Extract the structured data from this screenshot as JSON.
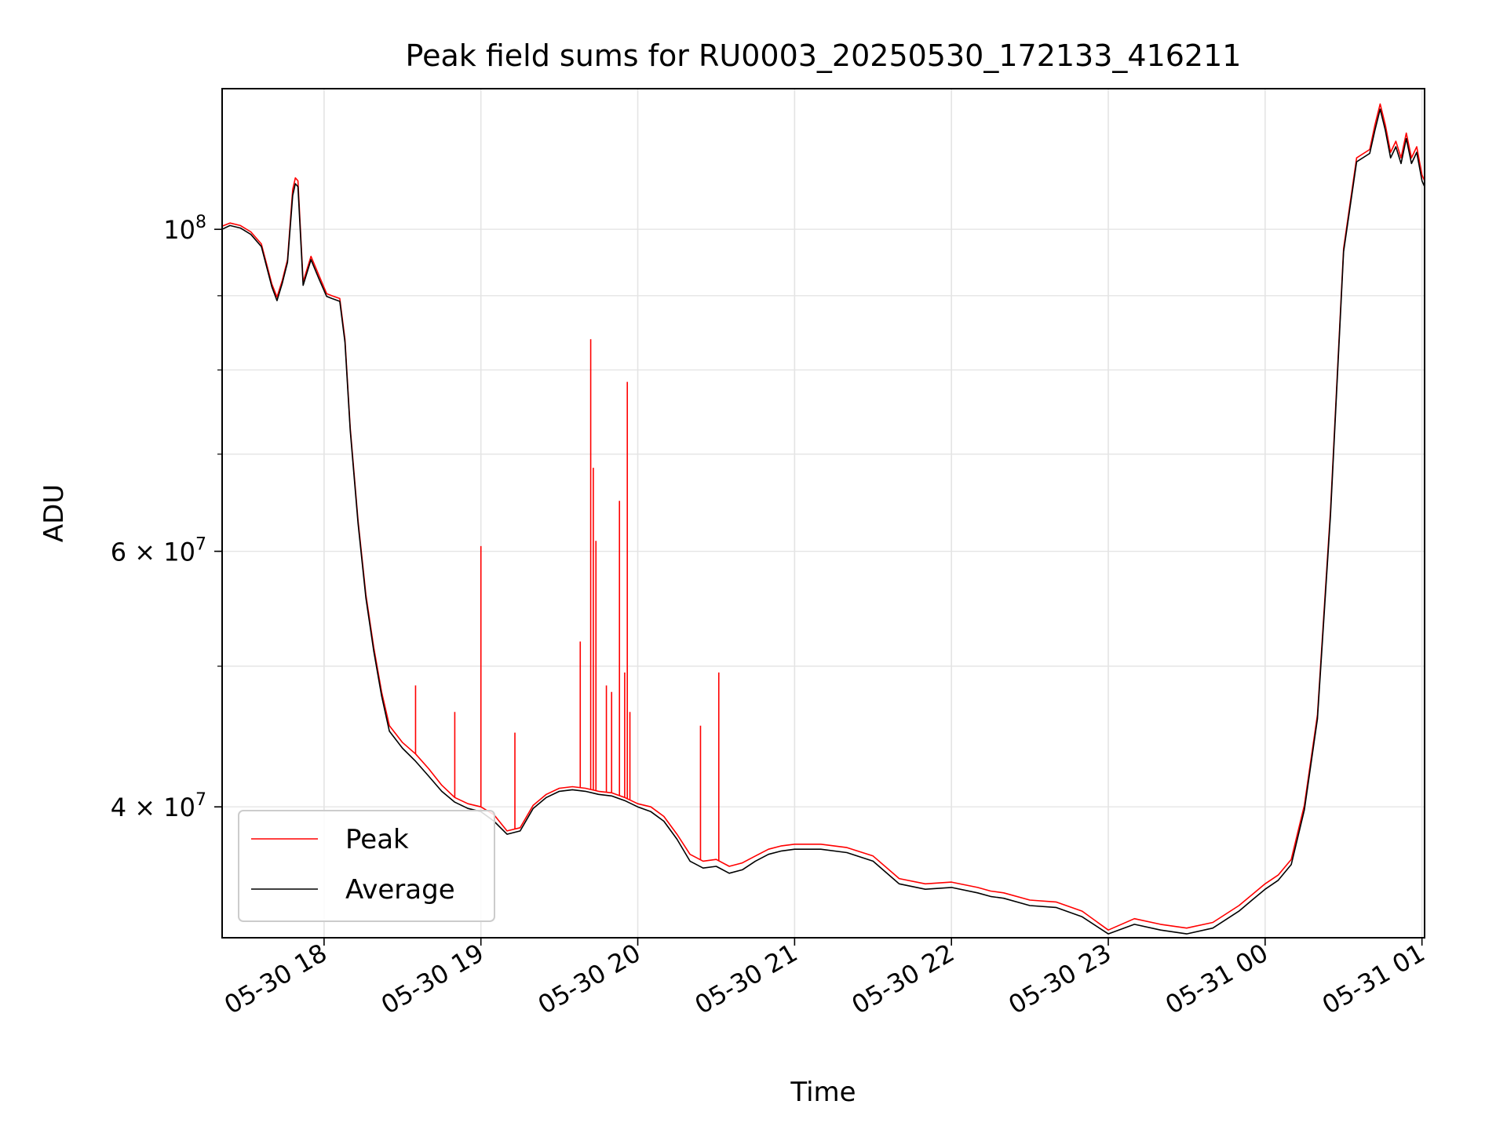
{
  "chart_data": {
    "type": "line",
    "title": "Peak field sums for RU0003_20250530_172133_416211",
    "xlabel": "Time",
    "ylabel": "ADU",
    "yscale": "log",
    "xlim": [
      "2025-05-30 17:21",
      "2025-05-31 01:01"
    ],
    "ylim": [
      32500000,
      125000000
    ],
    "x_ticks": [
      "05-30 18",
      "05-30 19",
      "05-30 20",
      "05-30 21",
      "05-30 22",
      "05-30 23",
      "05-31 00",
      "05-31 01"
    ],
    "y_ticks": [
      {
        "mantissa": "",
        "exponent": "8",
        "value": 100000000
      },
      {
        "mantissa": "6",
        "exponent": "7",
        "value": 60000000
      },
      {
        "mantissa": "4",
        "exponent": "7",
        "value": 40000000
      }
    ],
    "grid": true,
    "legend_position": "lower-left",
    "colors": {
      "peak": "#ff0000",
      "average": "#000000"
    },
    "series": [
      {
        "name": "Peak",
        "x": [
          "2025-05-30 17:21",
          "2025-05-30 17:24",
          "2025-05-30 17:28",
          "2025-05-30 17:32",
          "2025-05-30 17:36",
          "2025-05-30 17:40",
          "2025-05-30 17:42",
          "2025-05-30 17:44",
          "2025-05-30 17:46",
          "2025-05-30 17:48",
          "2025-05-30 17:49",
          "2025-05-30 17:50",
          "2025-05-30 17:52",
          "2025-05-30 17:55",
          "2025-05-30 17:58",
          "2025-05-30 18:01",
          "2025-05-30 18:03",
          "2025-05-30 18:06",
          "2025-05-30 18:08",
          "2025-05-30 18:10",
          "2025-05-30 18:13",
          "2025-05-30 18:16",
          "2025-05-30 18:19",
          "2025-05-30 18:22",
          "2025-05-30 18:25",
          "2025-05-30 18:30",
          "2025-05-30 18:35",
          "2025-05-30 18:40",
          "2025-05-30 18:45",
          "2025-05-30 18:50",
          "2025-05-30 18:55",
          "2025-05-30 19:00",
          "2025-05-30 19:05",
          "2025-05-30 19:10",
          "2025-05-30 19:15",
          "2025-05-30 19:20",
          "2025-05-30 19:25",
          "2025-05-30 19:30",
          "2025-05-30 19:35",
          "2025-05-30 19:40",
          "2025-05-30 19:45",
          "2025-05-30 19:50",
          "2025-05-30 19:55",
          "2025-05-30 20:00",
          "2025-05-30 20:05",
          "2025-05-30 20:10",
          "2025-05-30 20:15",
          "2025-05-30 20:20",
          "2025-05-30 20:25",
          "2025-05-30 20:30",
          "2025-05-30 20:35",
          "2025-05-30 20:40",
          "2025-05-30 20:45",
          "2025-05-30 20:50",
          "2025-05-30 20:55",
          "2025-05-30 21:00",
          "2025-05-30 21:10",
          "2025-05-30 21:20",
          "2025-05-30 21:30",
          "2025-05-30 21:40",
          "2025-05-30 21:50",
          "2025-05-30 22:00",
          "2025-05-30 22:10",
          "2025-05-30 22:15",
          "2025-05-30 22:20",
          "2025-05-30 22:30",
          "2025-05-30 22:40",
          "2025-05-30 22:50",
          "2025-05-30 23:00",
          "2025-05-30 23:10",
          "2025-05-30 23:20",
          "2025-05-30 23:30",
          "2025-05-30 23:40",
          "2025-05-30 23:50",
          "2025-05-30 23:55",
          "2025-05-31 00:00",
          "2025-05-31 00:05",
          "2025-05-31 00:10",
          "2025-05-31 00:15",
          "2025-05-31 00:20",
          "2025-05-31 00:25",
          "2025-05-31 00:30",
          "2025-05-31 00:35",
          "2025-05-31 00:40",
          "2025-05-31 00:42",
          "2025-05-31 00:44",
          "2025-05-31 00:46",
          "2025-05-31 00:48",
          "2025-05-31 00:50",
          "2025-05-31 00:52",
          "2025-05-31 00:54",
          "2025-05-31 00:56",
          "2025-05-31 00:58",
          "2025-05-31 01:00",
          "2025-05-31 01:01"
        ],
        "y": [
          100500000,
          101000000,
          100600000,
          99600000,
          97700000,
          91700000,
          89800000,
          92200000,
          95300000,
          106500000,
          108500000,
          108000000,
          92000000,
          95800000,
          93000000,
          90300000,
          90000000,
          89600000,
          84000000,
          73000000,
          63000000,
          56000000,
          51500000,
          48000000,
          45500000,
          44300000,
          43500000,
          42500000,
          41400000,
          40600000,
          40200000,
          40000000,
          39500000,
          38500000,
          38700000,
          40100000,
          40800000,
          41200000,
          41300000,
          41200000,
          41000000,
          40900000,
          40600000,
          40200000,
          40000000,
          39400000,
          38300000,
          37100000,
          36700000,
          36800000,
          36400000,
          36600000,
          37000000,
          37400000,
          37600000,
          37700000,
          37700000,
          37500000,
          37000000,
          35700000,
          35400000,
          35500000,
          35200000,
          35000000,
          34900000,
          34500000,
          34400000,
          33900000,
          32900000,
          33500000,
          33200000,
          33000000,
          33300000,
          34200000,
          34800000,
          35400000,
          35900000,
          36800000,
          40100000,
          46300000,
          64000000,
          97000000,
          112000000,
          113500000,
          118000000,
          122000000,
          118000000,
          113000000,
          115000000,
          112000000,
          116500000,
          112000000,
          114000000,
          109000000,
          108000000
        ]
      },
      {
        "name": "Average",
        "x": [
          "2025-05-30 17:21",
          "2025-05-30 17:24",
          "2025-05-30 17:28",
          "2025-05-30 17:32",
          "2025-05-30 17:36",
          "2025-05-30 17:40",
          "2025-05-30 17:42",
          "2025-05-30 17:44",
          "2025-05-30 17:46",
          "2025-05-30 17:48",
          "2025-05-30 17:49",
          "2025-05-30 17:50",
          "2025-05-30 17:52",
          "2025-05-30 17:55",
          "2025-05-30 17:58",
          "2025-05-30 18:01",
          "2025-05-30 18:03",
          "2025-05-30 18:06",
          "2025-05-30 18:08",
          "2025-05-30 18:10",
          "2025-05-30 18:13",
          "2025-05-30 18:16",
          "2025-05-30 18:19",
          "2025-05-30 18:22",
          "2025-05-30 18:25",
          "2025-05-30 18:30",
          "2025-05-30 18:35",
          "2025-05-30 18:40",
          "2025-05-30 18:45",
          "2025-05-30 18:50",
          "2025-05-30 18:55",
          "2025-05-30 19:00",
          "2025-05-30 19:05",
          "2025-05-30 19:10",
          "2025-05-30 19:15",
          "2025-05-30 19:20",
          "2025-05-30 19:25",
          "2025-05-30 19:30",
          "2025-05-30 19:35",
          "2025-05-30 19:40",
          "2025-05-30 19:45",
          "2025-05-30 19:50",
          "2025-05-30 19:55",
          "2025-05-30 20:00",
          "2025-05-30 20:05",
          "2025-05-30 20:10",
          "2025-05-30 20:15",
          "2025-05-30 20:20",
          "2025-05-30 20:25",
          "2025-05-30 20:30",
          "2025-05-30 20:35",
          "2025-05-30 20:40",
          "2025-05-30 20:45",
          "2025-05-30 20:50",
          "2025-05-30 20:55",
          "2025-05-30 21:00",
          "2025-05-30 21:10",
          "2025-05-30 21:20",
          "2025-05-30 21:30",
          "2025-05-30 21:40",
          "2025-05-30 21:50",
          "2025-05-30 22:00",
          "2025-05-30 22:10",
          "2025-05-30 22:15",
          "2025-05-30 22:20",
          "2025-05-30 22:30",
          "2025-05-30 22:40",
          "2025-05-30 22:50",
          "2025-05-30 23:00",
          "2025-05-30 23:10",
          "2025-05-30 23:20",
          "2025-05-30 23:30",
          "2025-05-30 23:40",
          "2025-05-30 23:50",
          "2025-05-30 23:55",
          "2025-05-31 00:00",
          "2025-05-31 00:05",
          "2025-05-31 00:10",
          "2025-05-31 00:15",
          "2025-05-31 00:20",
          "2025-05-31 00:25",
          "2025-05-31 00:30",
          "2025-05-31 00:35",
          "2025-05-31 00:40",
          "2025-05-31 00:42",
          "2025-05-31 00:44",
          "2025-05-31 00:46",
          "2025-05-31 00:48",
          "2025-05-31 00:50",
          "2025-05-31 00:52",
          "2025-05-31 00:54",
          "2025-05-31 00:56",
          "2025-05-31 00:58",
          "2025-05-31 01:00",
          "2025-05-31 01:01"
        ],
        "y": [
          100000000,
          100600000,
          100200000,
          99200000,
          97300000,
          91300000,
          89300000,
          91800000,
          94900000,
          105500000,
          107500000,
          107000000,
          91500000,
          95300000,
          92500000,
          89900000,
          89600000,
          89200000,
          83600000,
          72700000,
          62700000,
          55700000,
          51200000,
          47700000,
          45100000,
          43900000,
          43000000,
          42000000,
          41000000,
          40300000,
          39900000,
          39700000,
          39100000,
          38300000,
          38500000,
          39900000,
          40600000,
          41000000,
          41100000,
          41000000,
          40800000,
          40700000,
          40400000,
          40000000,
          39700000,
          39100000,
          38000000,
          36700000,
          36300000,
          36400000,
          36000000,
          36200000,
          36700000,
          37100000,
          37300000,
          37400000,
          37400000,
          37200000,
          36700000,
          35400000,
          35100000,
          35200000,
          34900000,
          34700000,
          34600000,
          34200000,
          34100000,
          33600000,
          32700000,
          33200000,
          32900000,
          32700000,
          33000000,
          33900000,
          34500000,
          35100000,
          35600000,
          36500000,
          39800000,
          46000000,
          63500000,
          96500000,
          111300000,
          112800000,
          117000000,
          121000000,
          117000000,
          112000000,
          114000000,
          111000000,
          115500000,
          111000000,
          113000000,
          108000000,
          107000000
        ]
      }
    ],
    "spikes_peak": [
      {
        "x": "2025-05-30 18:35",
        "y": 48500000
      },
      {
        "x": "2025-05-30 18:50",
        "y": 46500000
      },
      {
        "x": "2025-05-30 19:00",
        "y": 60500000
      },
      {
        "x": "2025-05-30 19:13",
        "y": 45000000
      },
      {
        "x": "2025-05-30 19:38",
        "y": 52000000
      },
      {
        "x": "2025-05-30 19:42",
        "y": 84000000
      },
      {
        "x": "2025-05-30 19:43",
        "y": 68500000
      },
      {
        "x": "2025-05-30 19:44",
        "y": 61000000
      },
      {
        "x": "2025-05-30 19:48",
        "y": 48500000
      },
      {
        "x": "2025-05-30 19:50",
        "y": 48000000
      },
      {
        "x": "2025-05-30 19:53",
        "y": 65000000
      },
      {
        "x": "2025-05-30 19:55",
        "y": 49500000
      },
      {
        "x": "2025-05-30 19:56",
        "y": 78500000
      },
      {
        "x": "2025-05-30 19:57",
        "y": 46500000
      },
      {
        "x": "2025-05-30 20:24",
        "y": 45500000
      },
      {
        "x": "2025-05-30 20:31",
        "y": 49500000
      }
    ],
    "legend": [
      "Peak",
      "Average"
    ]
  }
}
